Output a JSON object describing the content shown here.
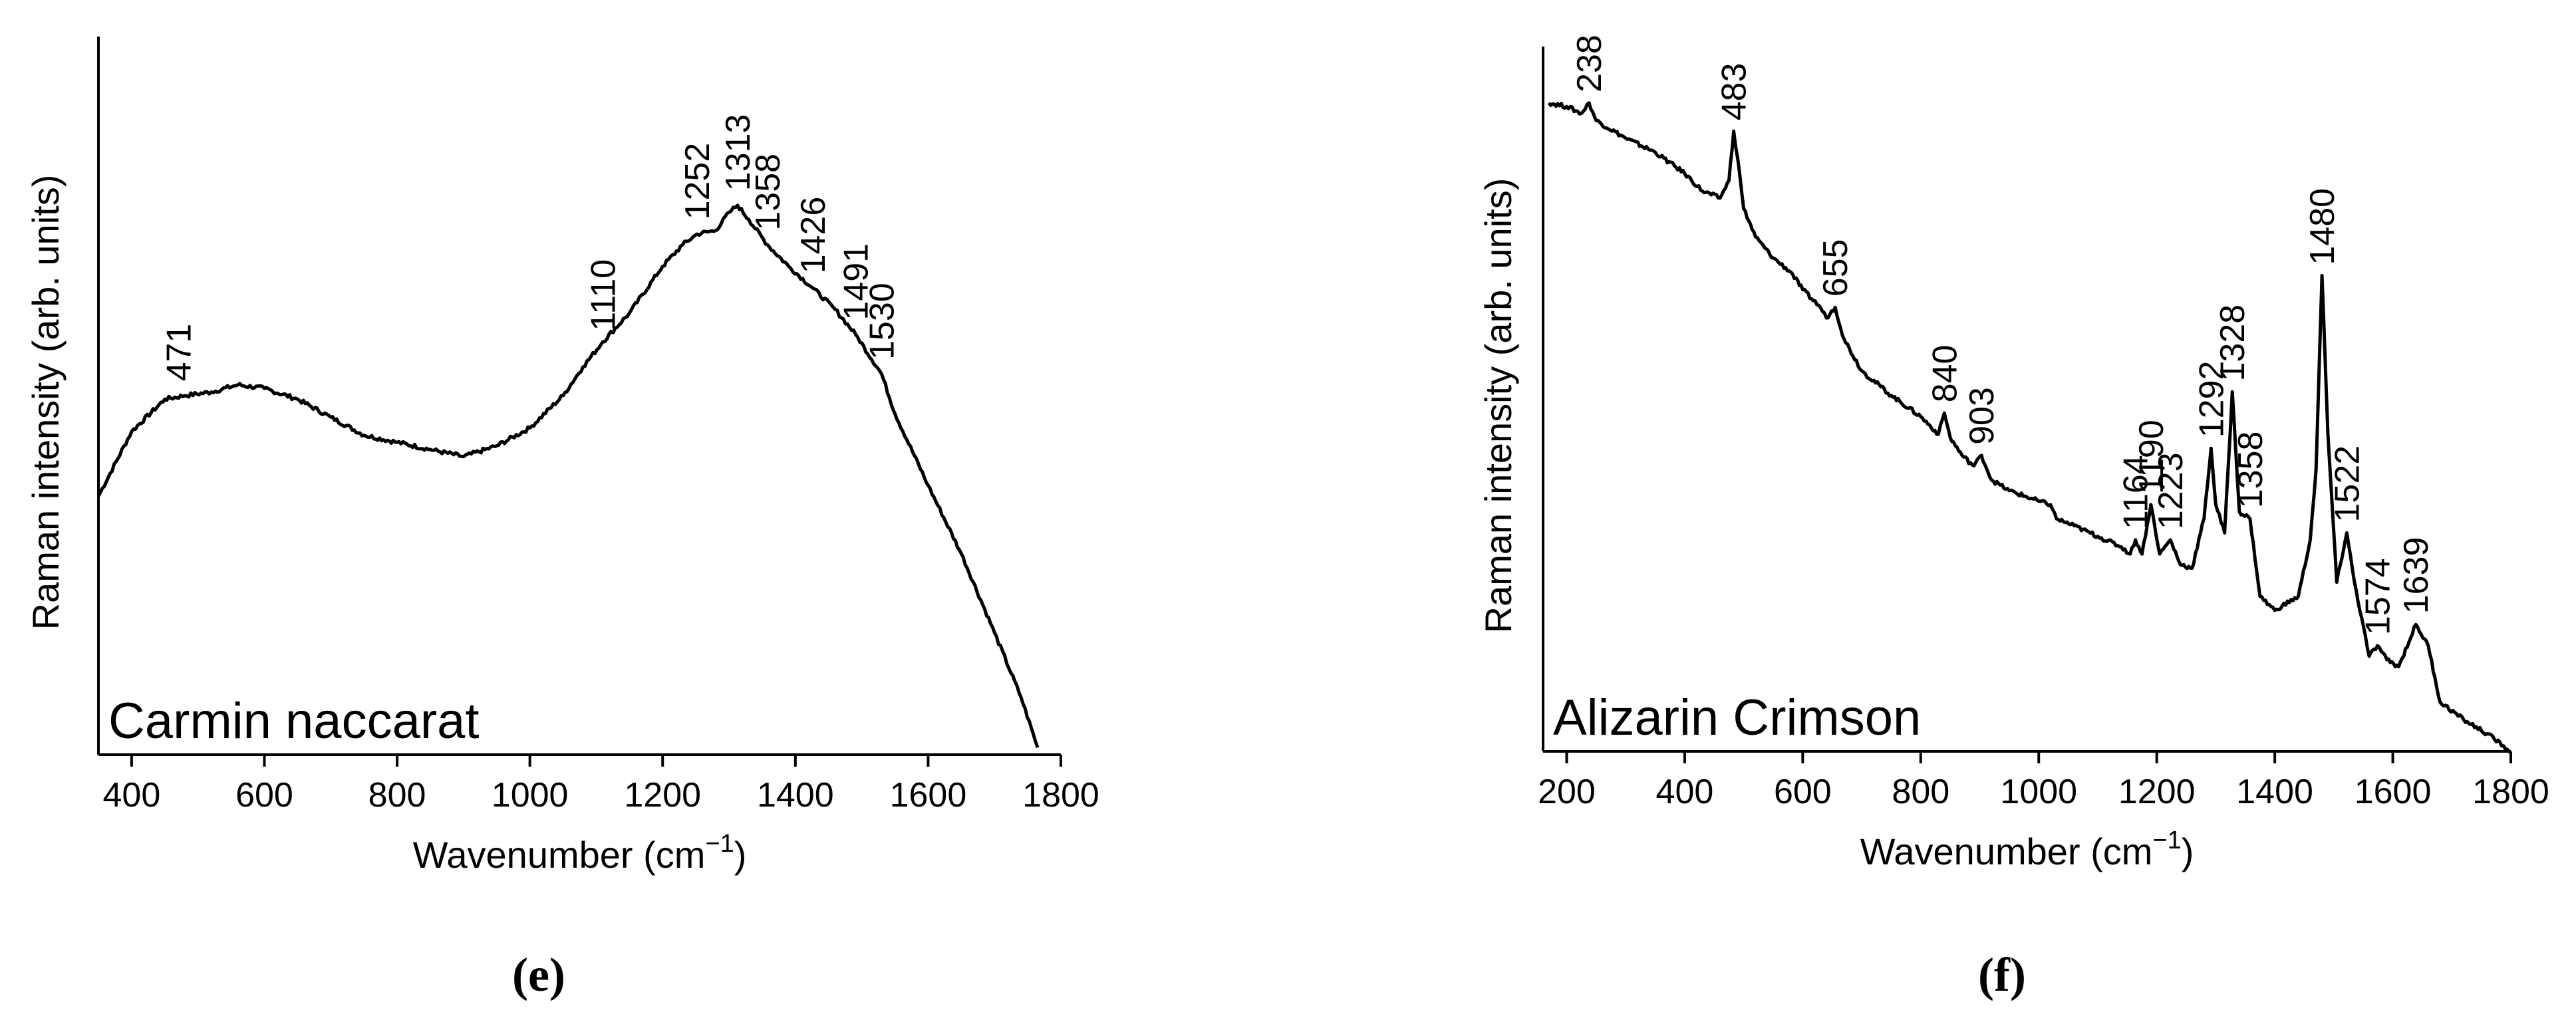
{
  "chart_data": [
    {
      "type": "line",
      "panel_label": "(e)",
      "sample_label": "Carmin naccarat",
      "xlabel_main": "Wavenumber (cm",
      "xlabel_sup": "−1",
      "xlabel_close": ")",
      "ylabel": "Raman intensity (arb. units)",
      "xlim": [
        350,
        1800
      ],
      "ylim": [
        0,
        100
      ],
      "x_ticks": [
        400,
        600,
        800,
        1000,
        1200,
        1400,
        1600,
        1800
      ],
      "x_tick_labels": [
        "400",
        "600",
        "800",
        "1000",
        "1200",
        "1400",
        "1600",
        "1800"
      ],
      "y_tick_labels": false,
      "series": [
        {
          "points": [
            [
              350,
              36
            ],
            [
              400,
              45
            ],
            [
              450,
              49.5
            ],
            [
              480,
              50
            ],
            [
              520,
              50.5
            ],
            [
              560,
              51.5
            ],
            [
              600,
              51
            ],
            [
              650,
              49.5
            ],
            [
              700,
              47
            ],
            [
              750,
              44.5
            ],
            [
              800,
              43.5
            ],
            [
              850,
              42.5
            ],
            [
              900,
              41.5
            ],
            [
              950,
              43
            ],
            [
              1000,
              45.5
            ],
            [
              1050,
              50
            ],
            [
              1080,
              54
            ],
            [
              1110,
              57.5
            ],
            [
              1150,
              61.5
            ],
            [
              1200,
              68
            ],
            [
              1230,
              71
            ],
            [
              1252,
              72.5
            ],
            [
              1280,
              73
            ],
            [
              1300,
              75.5
            ],
            [
              1313,
              76.5
            ],
            [
              1330,
              74.5
            ],
            [
              1358,
              71
            ],
            [
              1390,
              68
            ],
            [
              1426,
              65
            ],
            [
              1460,
              62
            ],
            [
              1491,
              58.5
            ],
            [
              1530,
              53
            ],
            [
              1550,
              47.5
            ],
            [
              1600,
              37.5
            ],
            [
              1650,
              28
            ],
            [
              1700,
              17
            ],
            [
              1740,
              8
            ],
            [
              1765,
              1
            ]
          ]
        }
      ],
      "annotations": [
        {
          "text": "471",
          "x": 471,
          "y": 52
        },
        {
          "text": "1110",
          "x": 1110,
          "y": 59
        },
        {
          "text": "1252",
          "x": 1252,
          "y": 74.5
        },
        {
          "text": "1313",
          "x": 1313,
          "y": 78.5
        },
        {
          "text": "1358",
          "x": 1358,
          "y": 73
        },
        {
          "text": "1426",
          "x": 1426,
          "y": 67
        },
        {
          "text": "1491",
          "x": 1491,
          "y": 60.5
        },
        {
          "text": "1530",
          "x": 1530,
          "y": 55
        }
      ]
    },
    {
      "type": "line",
      "panel_label": "(f)",
      "sample_label": "Alizarin Crimson",
      "xlabel_main": "Wavenumber (cm",
      "xlabel_sup": "−1",
      "xlabel_close": ")",
      "ylabel": "Raman intensity (arb. units)",
      "xlim": [
        160,
        1800
      ],
      "ylim": [
        0,
        100
      ],
      "x_ticks": [
        200,
        400,
        600,
        800,
        1000,
        1200,
        1400,
        1600,
        1800
      ],
      "x_tick_labels": [
        "200",
        "400",
        "600",
        "800",
        "1000",
        "1200",
        "1400",
        "1600",
        "1800"
      ],
      "y_tick_labels": false,
      "series": [
        {
          "points": [
            [
              170,
              92
            ],
            [
              200,
              91.5
            ],
            [
              225,
              90.5
            ],
            [
              238,
              92
            ],
            [
              250,
              89.5
            ],
            [
              300,
              87
            ],
            [
              350,
              85
            ],
            [
              400,
              82
            ],
            [
              430,
              79.5
            ],
            [
              460,
              78.5
            ],
            [
              475,
              81
            ],
            [
              483,
              88
            ],
            [
              490,
              84
            ],
            [
              500,
              77
            ],
            [
              520,
              73
            ],
            [
              550,
              70
            ],
            [
              580,
              68
            ],
            [
              600,
              65.5
            ],
            [
              630,
              63
            ],
            [
              640,
              61.5
            ],
            [
              655,
              63
            ],
            [
              670,
              58.5
            ],
            [
              700,
              54
            ],
            [
              750,
              50.5
            ],
            [
              800,
              47.5
            ],
            [
              830,
              45
            ],
            [
              840,
              48
            ],
            [
              850,
              44.5
            ],
            [
              870,
              42
            ],
            [
              890,
              40.5
            ],
            [
              903,
              42
            ],
            [
              920,
              38.5
            ],
            [
              950,
              37
            ],
            [
              1000,
              35.5
            ],
            [
              1020,
              35
            ],
            [
              1030,
              33
            ],
            [
              1060,
              32
            ],
            [
              1100,
              30.5
            ],
            [
              1140,
              29
            ],
            [
              1155,
              28
            ],
            [
              1164,
              30
            ],
            [
              1175,
              28
            ],
            [
              1190,
              35
            ],
            [
              1205,
              28
            ],
            [
              1223,
              30
            ],
            [
              1240,
              26.5
            ],
            [
              1260,
              26
            ],
            [
              1280,
              33
            ],
            [
              1292,
              43
            ],
            [
              1300,
              35
            ],
            [
              1315,
              31
            ],
            [
              1328,
              51
            ],
            [
              1340,
              34
            ],
            [
              1358,
              33
            ],
            [
              1375,
              22
            ],
            [
              1400,
              20
            ],
            [
              1440,
              22
            ],
            [
              1460,
              30
            ],
            [
              1470,
              40
            ],
            [
              1480,
              67.5
            ],
            [
              1490,
              45
            ],
            [
              1505,
              24
            ],
            [
              1522,
              31
            ],
            [
              1535,
              24
            ],
            [
              1560,
              13.5
            ],
            [
              1574,
              15
            ],
            [
              1590,
              13
            ],
            [
              1610,
              12
            ],
            [
              1639,
              18
            ],
            [
              1660,
              15
            ],
            [
              1680,
              7
            ],
            [
              1720,
              4.5
            ],
            [
              1760,
              2.5
            ],
            [
              1800,
              0
            ]
          ]
        }
      ],
      "annotations": [
        {
          "text": "238",
          "x": 238,
          "y": 93.5
        },
        {
          "text": "483",
          "x": 483,
          "y": 89.5
        },
        {
          "text": "655",
          "x": 655,
          "y": 64.5
        },
        {
          "text": "840",
          "x": 840,
          "y": 49.5
        },
        {
          "text": "903",
          "x": 903,
          "y": 43.5
        },
        {
          "text": "1164",
          "x": 1164,
          "y": 31.5
        },
        {
          "text": "1190",
          "x": 1190,
          "y": 36.5
        },
        {
          "text": "1223",
          "x": 1223,
          "y": 31.5
        },
        {
          "text": "1292",
          "x": 1292,
          "y": 44.5
        },
        {
          "text": "1328",
          "x": 1328,
          "y": 52.5
        },
        {
          "text": "1358",
          "x": 1358,
          "y": 34.5
        },
        {
          "text": "1480",
          "x": 1480,
          "y": 69
        },
        {
          "text": "1522",
          "x": 1522,
          "y": 32.5
        },
        {
          "text": "1574",
          "x": 1574,
          "y": 16.5
        },
        {
          "text": "1639",
          "x": 1639,
          "y": 19.5
        }
      ]
    }
  ]
}
